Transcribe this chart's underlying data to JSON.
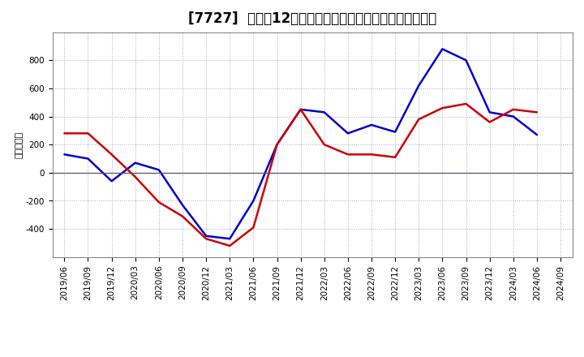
{
  "title": "[7727]  利益の12か月移動合計の対前年同期増減額の推移",
  "ylabel": "（百万円）",
  "x_labels": [
    "2019/06",
    "2019/09",
    "2019/12",
    "2020/03",
    "2020/06",
    "2020/09",
    "2020/12",
    "2021/03",
    "2021/06",
    "2021/09",
    "2021/12",
    "2022/03",
    "2022/06",
    "2022/09",
    "2022/12",
    "2023/03",
    "2023/06",
    "2023/09",
    "2023/12",
    "2024/03",
    "2024/06",
    "2024/09"
  ],
  "keijo_rieki": [
    130,
    100,
    -60,
    70,
    20,
    -230,
    -450,
    -470,
    -200,
    200,
    450,
    430,
    280,
    340,
    290,
    620,
    880,
    800,
    430,
    400,
    270,
    null
  ],
  "touki_jun_rieki": [
    280,
    280,
    130,
    -30,
    -210,
    -310,
    -470,
    -520,
    -390,
    200,
    450,
    200,
    130,
    130,
    110,
    380,
    460,
    490,
    360,
    450,
    430,
    null
  ],
  "line_color_keijo": "#0000cc",
  "line_color_touki": "#cc0000",
  "background_color": "#ffffff",
  "plot_bg_color": "#ffffff",
  "grid_color": "#aaaacc",
  "ylim": [
    -600,
    1000
  ],
  "yticks": [
    -400,
    -200,
    0,
    200,
    400,
    600,
    800
  ],
  "title_fontsize": 12,
  "axis_label_fontsize": 8,
  "tick_fontsize": 7.5,
  "legend_fontsize": 9
}
